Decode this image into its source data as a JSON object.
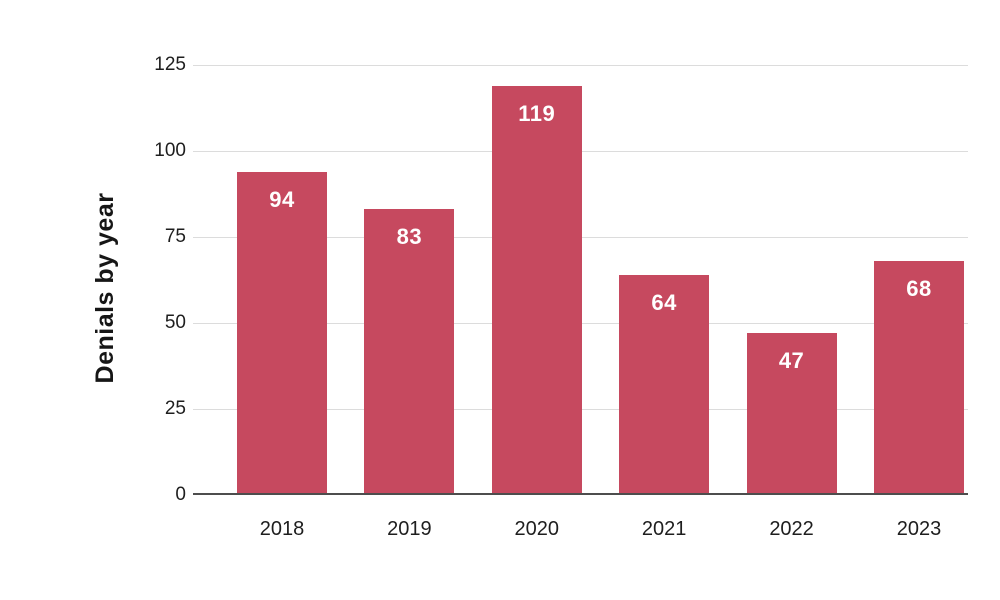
{
  "chart_data": {
    "type": "bar",
    "categories": [
      "2018",
      "2019",
      "2020",
      "2021",
      "2022",
      "2023"
    ],
    "values": [
      94,
      83,
      119,
      64,
      47,
      68
    ],
    "ylabel": "Denials by year",
    "xlabel": "",
    "ylim": [
      0,
      125
    ],
    "yticks": [
      0,
      25,
      50,
      75,
      100,
      125
    ],
    "grid": "horizontal",
    "legend": "none",
    "colors": {
      "bar": "#C6495F",
      "value_label": "#FFFFFF",
      "gridline": "#DCDCDC",
      "axis_line": "#4D4D4D",
      "tick_label": "#1E1E1E",
      "axis_title": "#161616",
      "background": "#FFFFFF"
    }
  }
}
